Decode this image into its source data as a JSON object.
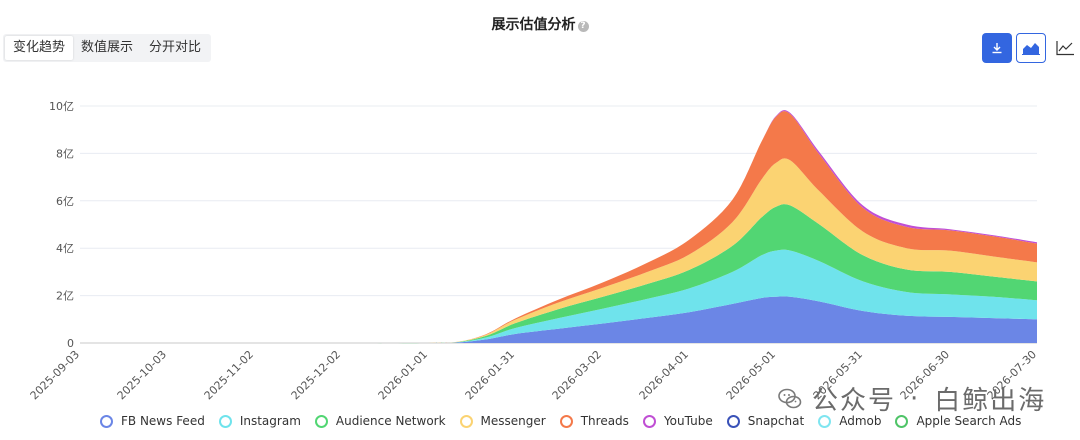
{
  "title": "展示估值分析",
  "tabs": [
    "变化趋势",
    "数值展示",
    "分开对比"
  ],
  "active_tab": 0,
  "toolbar": {
    "icons": [
      "download-icon",
      "area-chart-icon",
      "line-chart-icon"
    ]
  },
  "watermark": {
    "left": "公众号",
    "right": "白鲸出海",
    "icon": "wechat-icon"
  },
  "colors": {
    "FB News Feed": "#6b86e6",
    "Instagram": "#6fe3ec",
    "Audience Network": "#52d673",
    "Messenger": "#fbd372",
    "Threads": "#f4794a",
    "YouTube": "#c04fd4",
    "Snapchat": "#3a52b8",
    "Admob": "#7fe5f0",
    "Apple Search Ads": "#4fc468"
  },
  "chart_data": {
    "type": "area",
    "stacked": true,
    "title": "展示估值分析",
    "y_unit": "亿",
    "ylim": [
      0,
      10
    ],
    "yticks": [
      "0",
      "2亿",
      "4亿",
      "6亿",
      "8亿",
      "10亿"
    ],
    "xticks": [
      "2025-09-03",
      "2025-10-03",
      "2025-11-02",
      "2025-12-02",
      "2026-01-01",
      "2026-01-31",
      "2026-03-02",
      "2026-04-01",
      "2026-05-01",
      "2026-05-31",
      "2026-06-30",
      "2026-07-30"
    ],
    "x": [
      "2025-09-03",
      "2025-10-03",
      "2025-11-02",
      "2025-12-02",
      "2026-01-01",
      "2026-01-11",
      "2026-01-21",
      "2026-01-31",
      "2026-02-15",
      "2026-03-02",
      "2026-03-17",
      "2026-04-01",
      "2026-04-16",
      "2026-04-26",
      "2026-05-01",
      "2026-05-06",
      "2026-05-16",
      "2026-05-31",
      "2026-06-15",
      "2026-06-30",
      "2026-07-15",
      "2026-07-30"
    ],
    "series": [
      {
        "name": "FB News Feed",
        "values": [
          0,
          0,
          0,
          0,
          0,
          0.02,
          0.15,
          0.38,
          0.6,
          0.82,
          1.05,
          1.3,
          1.65,
          1.9,
          1.95,
          1.95,
          1.75,
          1.35,
          1.15,
          1.1,
          1.05,
          1.0
        ]
      },
      {
        "name": "Instagram",
        "values": [
          0,
          0,
          0,
          0,
          0,
          0.01,
          0.08,
          0.25,
          0.45,
          0.62,
          0.8,
          1.0,
          1.35,
          1.8,
          1.95,
          1.95,
          1.7,
          1.25,
          1.0,
          0.95,
          0.9,
          0.8
        ]
      },
      {
        "name": "Audience Network",
        "values": [
          0,
          0,
          0,
          0,
          0,
          0.01,
          0.07,
          0.2,
          0.38,
          0.5,
          0.62,
          0.78,
          1.1,
          1.6,
          1.85,
          1.9,
          1.55,
          1.1,
          0.95,
          0.95,
          0.85,
          0.8
        ]
      },
      {
        "name": "Messenger",
        "values": [
          0,
          0,
          0,
          0,
          0,
          0.01,
          0.05,
          0.15,
          0.28,
          0.38,
          0.5,
          0.65,
          1.0,
          1.6,
          1.85,
          1.9,
          1.4,
          1.0,
          0.9,
          0.9,
          0.85,
          0.8
        ]
      },
      {
        "name": "Threads",
        "values": [
          0,
          0,
          0,
          0,
          0,
          0,
          0.02,
          0.05,
          0.12,
          0.22,
          0.38,
          0.62,
          0.95,
          1.6,
          1.95,
          1.95,
          1.55,
          1.0,
          0.9,
          0.85,
          0.85,
          0.8
        ]
      },
      {
        "name": "YouTube",
        "values": [
          0,
          0,
          0,
          0,
          0,
          0,
          0,
          0,
          0,
          0,
          0,
          0,
          0,
          0,
          0.03,
          0.05,
          0.1,
          0.1,
          0.1,
          0.05,
          0.05,
          0.05
        ]
      },
      {
        "name": "Snapchat",
        "values": [
          0,
          0,
          0,
          0,
          0,
          0,
          0,
          0,
          0,
          0,
          0,
          0,
          0,
          0,
          0,
          0,
          0,
          0,
          0,
          0,
          0,
          0
        ]
      },
      {
        "name": "Admob",
        "values": [
          0,
          0,
          0,
          0,
          0,
          0,
          0,
          0,
          0,
          0,
          0,
          0,
          0,
          0,
          0,
          0,
          0,
          0,
          0,
          0,
          0,
          0
        ]
      },
      {
        "name": "Apple Search Ads",
        "values": [
          0,
          0,
          0,
          0,
          0,
          0,
          0,
          0,
          0,
          0,
          0,
          0,
          0,
          0,
          0,
          0,
          0,
          0,
          0,
          0,
          0,
          0
        ]
      }
    ],
    "grid": true,
    "legend": "bottom"
  }
}
